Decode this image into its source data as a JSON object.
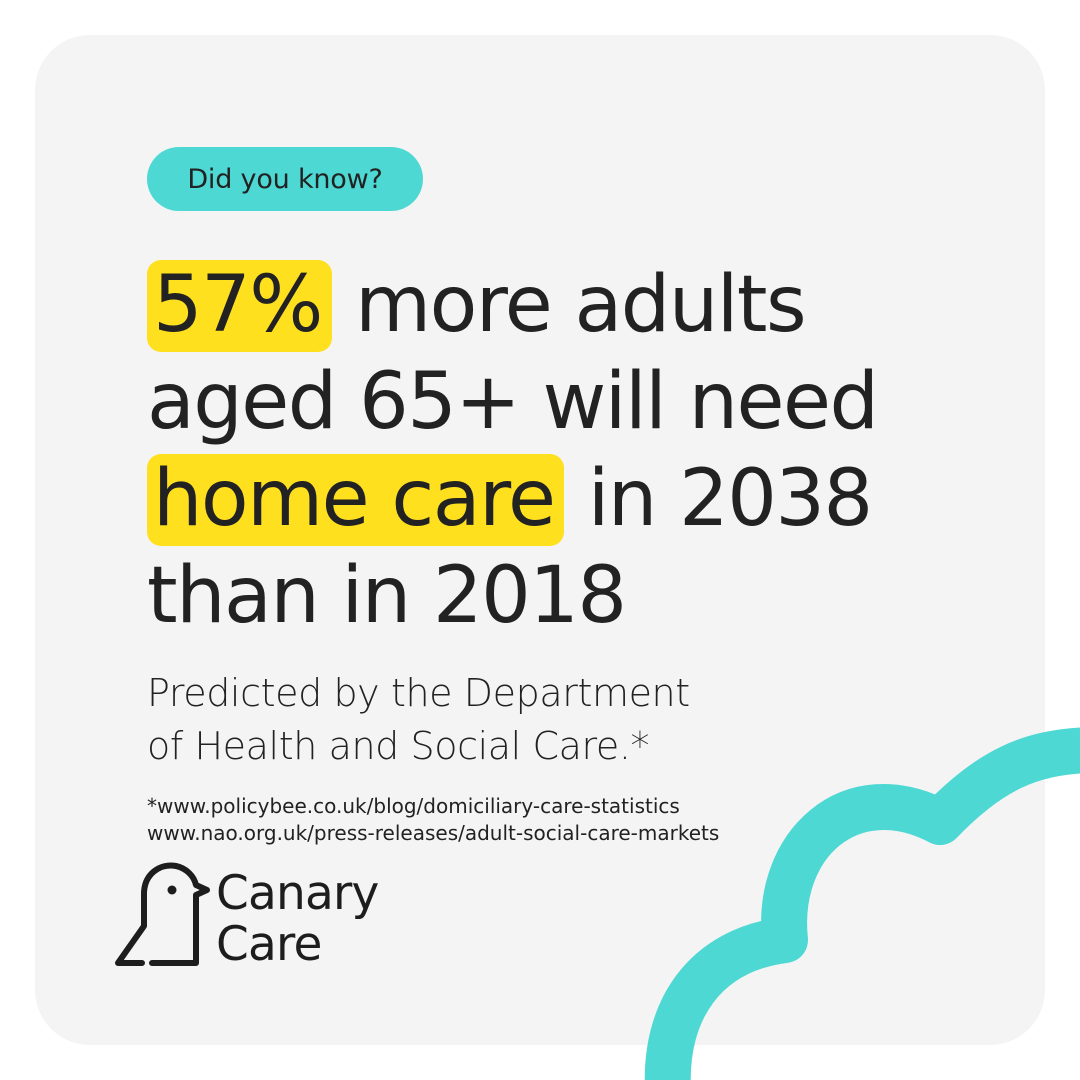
{
  "badge": {
    "label": "Did you know?"
  },
  "headline": {
    "stat": "57%",
    "line1_rest": " more adults",
    "line2": "aged 65+ will need",
    "highlight2": "home care",
    "line3_rest": " in 2038",
    "line4": "than in 2018"
  },
  "subtext": {
    "line1": "Predicted by the Department",
    "line2": "of Health and Social Care.*"
  },
  "sources": {
    "line1": "*www.policybee.co.uk/blog/domiciliary-care-statistics",
    "line2": "www.nao.org.uk/press-releases/adult-social-care-markets"
  },
  "logo": {
    "icon": "canary-bird-icon",
    "word1": "Canary",
    "word2": "Care"
  },
  "colors": {
    "card_background": "#f4f4f4",
    "accent_teal": "#4ed8d3",
    "highlight_yellow": "#ffe01f",
    "text_dark": "#222222"
  }
}
